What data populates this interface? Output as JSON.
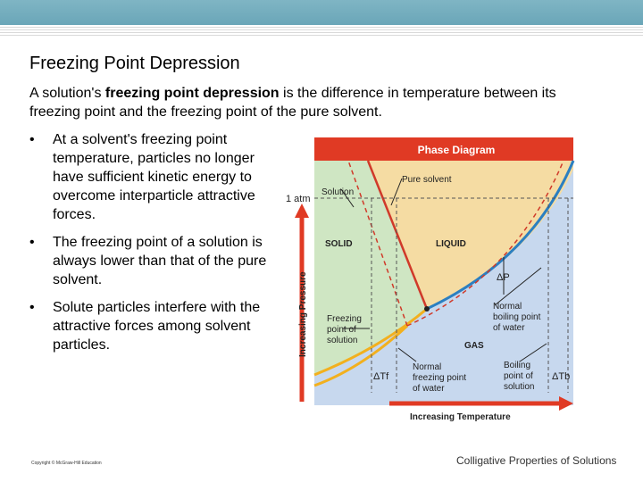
{
  "slide": {
    "title": "Freezing Point Depression",
    "intro": {
      "part1": "A solution's ",
      "bold": "freezing point depression",
      "part2": " is the difference in temperature between its freezing point and the freezing point of the pure solvent."
    },
    "bullet_glyph": "•",
    "bullets": [
      "At a solvent's freezing point temperature, particles no longer have sufficient kinetic energy to overcome interparticle attractive forces.",
      "The freezing point of a solution is always lower than that of the pure solvent.",
      "Solute particles interfere with the attractive forces among solvent particles."
    ],
    "copyright": "Copyright © McGraw-Hill Education",
    "footer": "Colligative Properties of Solutions"
  },
  "diagram": {
    "header": "Phase Diagram",
    "atm_label": "1 atm",
    "y_axis": "Increasing Pressure",
    "x_axis": "Increasing Temperature",
    "labels": {
      "solution": "Solution",
      "pure_solvent": "Pure solvent",
      "solid": "SOLID",
      "liquid": "LIQUID",
      "gas": "GAS",
      "delta_p": "ΔP",
      "delta_tf": "ΔTf",
      "delta_tb": "ΔTb",
      "fp_solution": [
        "Freezing",
        "point of",
        "solution"
      ],
      "nbp_water": [
        "Normal",
        "boiling point",
        "of water"
      ],
      "nfp_water": [
        "Normal",
        "freezing point",
        "of water"
      ],
      "bp_solution": [
        "Boiling",
        "point of",
        "solution"
      ]
    },
    "colors": {
      "solid_region": "#cfe6c3",
      "liquid_region": "#f5dca3",
      "gas_region": "#c7d8ee",
      "header_bar": "#e03a24",
      "pure_solvent_line": "#2b7fc1",
      "solution_line": "#d03a2a",
      "gas_solid_line": "#f2b01e",
      "axis_arrow": "#e03a24"
    }
  }
}
